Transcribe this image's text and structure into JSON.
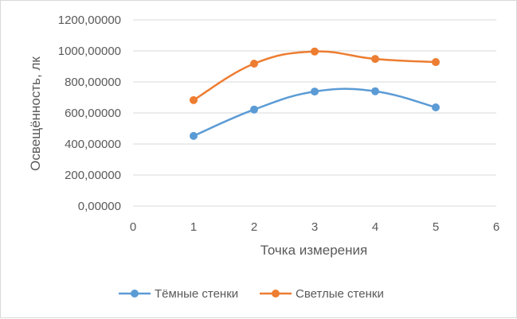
{
  "chart_data": {
    "type": "scatter",
    "title": "",
    "xlabel": "Точка измерения",
    "ylabel": "Освещённость, лк",
    "xlim": [
      0,
      6
    ],
    "ylim": [
      0,
      1200
    ],
    "x_ticks": [
      "0",
      "1",
      "2",
      "3",
      "4",
      "5",
      "6"
    ],
    "y_ticks": [
      "0,00000",
      "200,00000",
      "400,00000",
      "600,00000",
      "800,00000",
      "1000,00000",
      "1200,00000"
    ],
    "grid": true,
    "smooth_lines": true,
    "legend_position": "bottom",
    "series": [
      {
        "name": "Тёмные стенки",
        "color": "#5b9bd5",
        "x": [
          1,
          2,
          3,
          4,
          5
        ],
        "y": [
          452,
          622,
          738,
          740,
          636
        ]
      },
      {
        "name": "Светлые стенки",
        "color": "#ed7d31",
        "x": [
          1,
          2,
          3,
          4,
          5
        ],
        "y": [
          683,
          918,
          996,
          948,
          928
        ]
      }
    ]
  }
}
